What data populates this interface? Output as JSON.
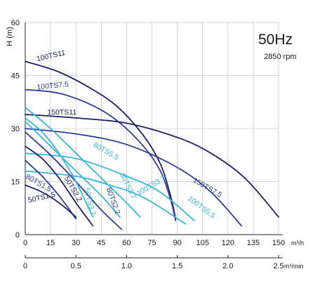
{
  "chart_data": {
    "type": "line",
    "frequency_label": "50Hz",
    "speed_label": "2850 rpm",
    "ylabel": "H (m)",
    "x_unit_primary": "m³/h",
    "x_unit_secondary": "m³/min",
    "ylim": [
      0,
      60
    ],
    "xlim": [
      0,
      150
    ],
    "y_ticks": [
      "0",
      "15",
      "30",
      "45",
      "60"
    ],
    "x_ticks_primary": [
      "0",
      "15",
      "30",
      "45",
      "60",
      "75",
      "90",
      "105",
      "120",
      "135",
      "150"
    ],
    "x_ticks_secondary": [
      "0",
      "0.5",
      "1.0",
      "1.5",
      "2.0",
      "2.5"
    ],
    "x_ticks_secondary_values": [
      0,
      30,
      60,
      90,
      120,
      150
    ],
    "grid": true,
    "colors": {
      "navy": "#1c1f6b",
      "blue": "#2e3c9a",
      "mid": "#3f6fc2",
      "cyan": "#35b6dd",
      "axis": "#222222"
    },
    "series": [
      {
        "name": "100TS11",
        "color": "#1c1f6b",
        "x": [
          0,
          20,
          40,
          55,
          70,
          80,
          86,
          89
        ],
        "y": [
          49,
          46,
          41,
          36,
          28,
          20,
          11,
          4.5
        ]
      },
      {
        "name": "100TS7.5",
        "color": "#2e3c9a",
        "x": [
          0,
          20,
          40,
          55,
          70,
          80,
          86,
          89
        ],
        "y": [
          41,
          40,
          36.5,
          32,
          25,
          18,
          10,
          4
        ]
      },
      {
        "name": "150TS11",
        "color": "#1c1f6b",
        "x": [
          0,
          30,
          60,
          90,
          110,
          130,
          150
        ],
        "y": [
          34,
          33,
          31.5,
          27.5,
          23,
          16,
          5
        ]
      },
      {
        "name": "150TS7.5",
        "color": "#2e3c9a",
        "x": [
          0,
          30,
          60,
          90,
          110,
          128
        ],
        "y": [
          30,
          28.5,
          25.5,
          19,
          12,
          2.5
        ]
      },
      {
        "name": "100TS5.5",
        "color": "#35b6dd",
        "x": [
          0,
          30,
          60,
          80,
          100
        ],
        "y": [
          23,
          21.5,
          16.5,
          12,
          4
        ]
      },
      {
        "name": "100TS3.7",
        "color": "#35b6dd",
        "x": [
          0,
          30,
          50,
          70,
          95
        ],
        "y": [
          18,
          16.5,
          14,
          10.5,
          3
        ]
      },
      {
        "name": "80TS5.5",
        "color": "#35b6dd",
        "x": [
          0,
          15,
          30,
          45,
          60,
          68
        ],
        "y": [
          36,
          30,
          23,
          16,
          9,
          5
        ]
      },
      {
        "name": "80TS3.7",
        "color": "#35b6dd",
        "x": [
          0,
          15,
          30,
          45,
          56
        ],
        "y": [
          32,
          25,
          18,
          11,
          5
        ]
      },
      {
        "name": "80TS2.2",
        "color": "#2e3c9a",
        "x": [
          0,
          15,
          30,
          45,
          57
        ],
        "y": [
          29,
          22.5,
          15,
          7,
          1.5
        ]
      },
      {
        "name": "50TS3.7",
        "color": "#35b6dd",
        "x": [
          0,
          10,
          20,
          30,
          40
        ],
        "y": [
          33,
          29,
          23,
          15,
          5
        ]
      },
      {
        "name": "50TS2.2",
        "color": "#1c1f6b",
        "x": [
          0,
          10,
          20,
          30,
          40
        ],
        "y": [
          25,
          21.5,
          16,
          9,
          2.5
        ]
      },
      {
        "name": "80TS1.5",
        "color": "#2e3c9a",
        "x": [
          0,
          10,
          20,
          30
        ],
        "y": [
          21,
          16.5,
          11,
          4.5
        ]
      },
      {
        "name": "50TS1.5",
        "color": "#1c1f6b",
        "x": [
          0,
          10,
          20,
          30
        ],
        "y": [
          14,
          12,
          9,
          5
        ]
      }
    ],
    "labels": [
      {
        "text": "100TS11",
        "series": 0,
        "at": [
          7,
          49
        ],
        "angle": -13,
        "color": "#1c1f6b"
      },
      {
        "text": "100TS7.5",
        "series": 1,
        "at": [
          7,
          41
        ],
        "angle": -6,
        "color": "#2e3c9a"
      },
      {
        "text": "150TS11",
        "series": 2,
        "at": [
          13,
          34
        ],
        "angle": 0,
        "color": "#1c1f6b"
      },
      {
        "text": "150TS7.5",
        "series": 3,
        "at": [
          99,
          15
        ],
        "angle": 30,
        "color": "#2e3c9a"
      },
      {
        "text": "100TS5.5",
        "series": 4,
        "at": [
          96,
          10
        ],
        "angle": 37,
        "color": "#35b6dd"
      },
      {
        "text": "100TS3.7",
        "series": 5,
        "at": [
          67,
          11
        ],
        "angle": -30,
        "color": "#35b6dd"
      },
      {
        "text": "80TS5.5",
        "series": 6,
        "at": [
          40,
          25
        ],
        "angle": 30,
        "color": "#35b6dd"
      },
      {
        "text": "80TS3.7",
        "series": 7,
        "at": [
          56,
          17
        ],
        "angle": 64,
        "color": "#35b6dd"
      },
      {
        "text": "80TS2.2",
        "series": 8,
        "at": [
          48,
          13
        ],
        "angle": 70,
        "color": "#2e3c9a"
      },
      {
        "text": "50TS3.7",
        "series": 9,
        "at": [
          35,
          13
        ],
        "angle": 76,
        "color": "#35b6dd"
      },
      {
        "text": "50TS2.2",
        "series": 10,
        "at": [
          23,
          16
        ],
        "angle": 60,
        "color": "#1c1f6b"
      },
      {
        "text": "80TS1.5",
        "series": 11,
        "at": [
          0,
          16
        ],
        "angle": 30,
        "color": "#2e3c9a"
      },
      {
        "text": "50TS1.5",
        "series": 12,
        "at": [
          2,
          9
        ],
        "angle": -13,
        "color": "#1c1f6b"
      }
    ]
  }
}
